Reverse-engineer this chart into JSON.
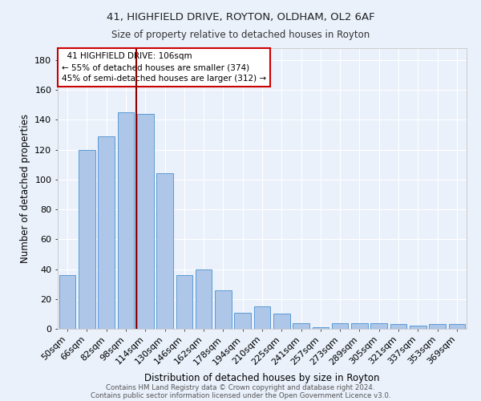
{
  "title1": "41, HIGHFIELD DRIVE, ROYTON, OLDHAM, OL2 6AF",
  "title2": "Size of property relative to detached houses in Royton",
  "xlabel": "Distribution of detached houses by size in Royton",
  "ylabel": "Number of detached properties",
  "footnote1": "Contains HM Land Registry data © Crown copyright and database right 2024.",
  "footnote2": "Contains public sector information licensed under the Open Government Licence v3.0.",
  "categories": [
    "50sqm",
    "66sqm",
    "82sqm",
    "98sqm",
    "114sqm",
    "130sqm",
    "146sqm",
    "162sqm",
    "178sqm",
    "194sqm",
    "210sqm",
    "225sqm",
    "241sqm",
    "257sqm",
    "273sqm",
    "289sqm",
    "305sqm",
    "321sqm",
    "337sqm",
    "353sqm",
    "369sqm"
  ],
  "values": [
    36,
    120,
    129,
    145,
    144,
    104,
    36,
    40,
    26,
    11,
    15,
    10,
    4,
    1,
    4,
    4,
    4,
    3,
    2,
    3,
    3
  ],
  "bar_color": "#aec6e8",
  "bar_edge_color": "#5b9bd5",
  "bg_color": "#eaf1fb",
  "grid_color": "#ffffff",
  "vline_x": 3.55,
  "vline_color": "#8b0000",
  "annotation_text": "  41 HIGHFIELD DRIVE: 106sqm\n← 55% of detached houses are smaller (374)\n45% of semi-detached houses are larger (312) →",
  "annotation_box_color": "#ffffff",
  "annotation_edge_color": "#cc0000",
  "ylim": [
    0,
    188
  ],
  "yticks": [
    0,
    20,
    40,
    60,
    80,
    100,
    120,
    140,
    160,
    180
  ]
}
